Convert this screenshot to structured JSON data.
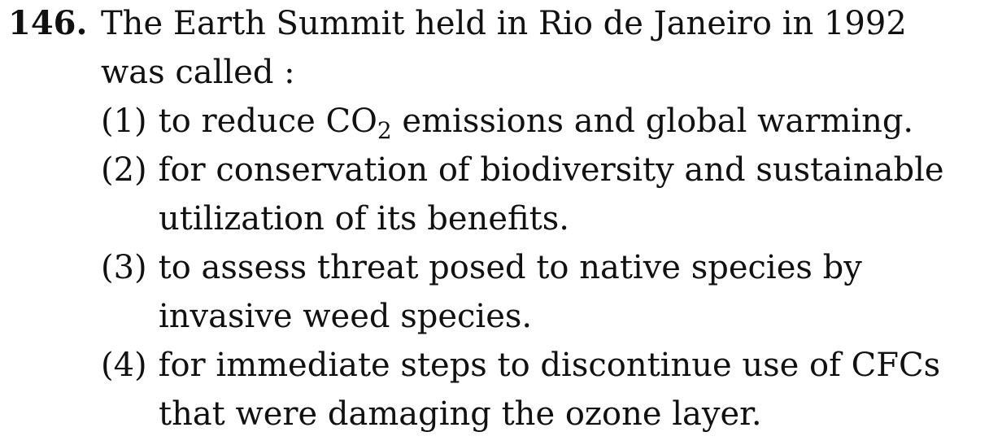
{
  "question": {
    "number": "146.",
    "stem_line1": "The Earth Summit held in Rio de Janeiro in 1992",
    "stem_line2": "was called :"
  },
  "options": [
    {
      "label": "(1)",
      "line1_pre": "to reduce CO",
      "line1_sub": "2",
      "line1_post": " emissions and global warming."
    },
    {
      "label": "(2)",
      "line1": "for conservation of biodiversity and sustainable",
      "line2": "utilization of its benefits."
    },
    {
      "label": "(3)",
      "line1": "to assess threat posed to native species by",
      "line2": "invasive weed species."
    },
    {
      "label": "(4)",
      "line1": "for immediate steps to discontinue use of CFCs",
      "line2": "that were damaging the ozone layer."
    }
  ]
}
